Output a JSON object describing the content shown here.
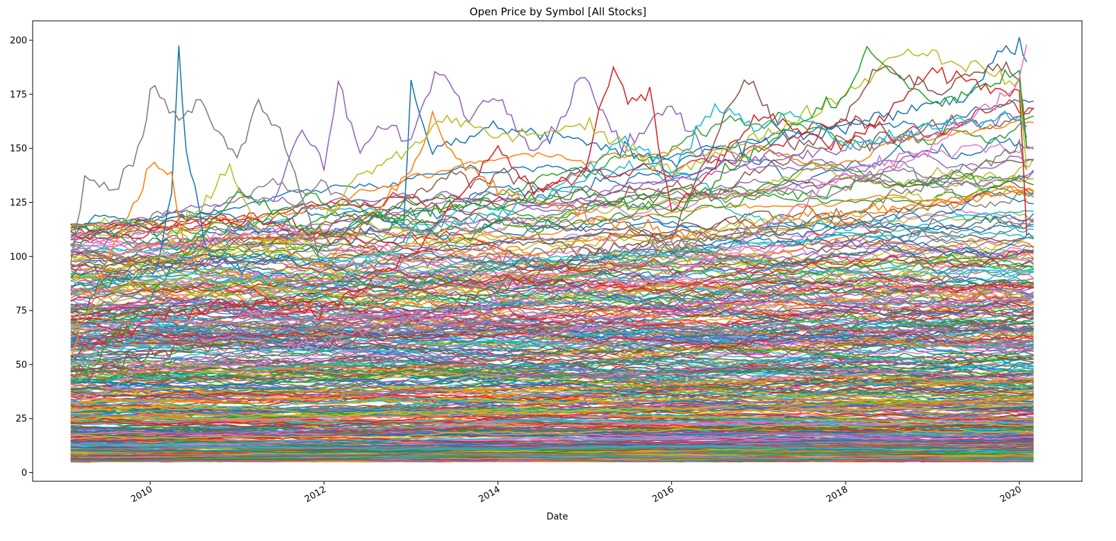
{
  "chart_data": {
    "type": "line",
    "title": "Open Price by Symbol [All Stocks]",
    "xlabel": "Date",
    "ylabel": "",
    "x_range": [
      "2009-02-01",
      "2020-03-01"
    ],
    "xlim": [
      "2008-08-25",
      "2020-09-20"
    ],
    "ylim": [
      -4,
      209
    ],
    "x_ticks": [
      "2010",
      "2012",
      "2014",
      "2016",
      "2018",
      "2020"
    ],
    "x_tick_dates": [
      "2010-01-01",
      "2012-01-01",
      "2014-01-01",
      "2016-01-01",
      "2018-01-01",
      "2020-01-01"
    ],
    "y_ticks": [
      0,
      25,
      50,
      75,
      100,
      125,
      150,
      175,
      200
    ],
    "legend": false,
    "grid": false,
    "series_count_approx": 500,
    "palette": [
      "#1f77b4",
      "#ff7f0e",
      "#2ca02c",
      "#d62728",
      "#9467bd",
      "#8c564b",
      "#e377c2",
      "#7f7f7f",
      "#bcbd22",
      "#17becf"
    ],
    "series": [
      {
        "color": "#1f77b4",
        "x": [
          "2009-02",
          "2009-06",
          "2009-10",
          "2010-02",
          "2010-04",
          "2010-05",
          "2010-06",
          "2010-09",
          "2011-01",
          "2012-12",
          "2013-01",
          "2013-04",
          "2014-01",
          "2016-01",
          "2018-01",
          "2019-06",
          "2019-10",
          "2020-01",
          "2020-02"
        ],
        "values": [
          60,
          85,
          90,
          95,
          130,
          195,
          150,
          100,
          95,
          115,
          180,
          150,
          160,
          145,
          160,
          175,
          195,
          197,
          190
        ]
      },
      {
        "color": "#7f7f7f",
        "x": [
          "2009-02",
          "2009-04",
          "2009-08",
          "2009-12",
          "2010-01",
          "2010-05",
          "2010-08",
          "2011-01",
          "2011-04",
          "2011-07",
          "2011-09",
          "2012-01",
          "2014-01",
          "2016-01",
          "2018-01",
          "2020-01",
          "2020-02"
        ],
        "values": [
          96,
          138,
          128,
          155,
          178,
          165,
          170,
          145,
          172,
          158,
          140,
          95,
          100,
          105,
          120,
          150,
          140
        ]
      },
      {
        "color": "#ff7f0e",
        "x": [
          "2009-02",
          "2009-08",
          "2009-12",
          "2010-01",
          "2010-04",
          "2010-06",
          "2010-12",
          "2011-06",
          "2012-01",
          "2013-01",
          "2013-04",
          "2013-06",
          "2014-01",
          "2016-01",
          "2018-01",
          "2020-01",
          "2020-02"
        ],
        "values": [
          55,
          105,
          132,
          146,
          138,
          100,
          110,
          108,
          95,
          140,
          165,
          150,
          130,
          110,
          120,
          130,
          125
        ]
      },
      {
        "color": "#9467bd",
        "x": [
          "2011-06",
          "2011-10",
          "2012-01",
          "2012-03",
          "2012-06",
          "2012-09",
          "2013-01",
          "2013-05",
          "2013-09",
          "2014-01",
          "2014-06",
          "2014-09",
          "2015-01",
          "2015-06",
          "2016-01",
          "2016-06",
          "2018-01",
          "2020-01",
          "2020-02"
        ],
        "values": [
          125,
          160,
          140,
          180,
          148,
          160,
          155,
          188,
          165,
          175,
          150,
          160,
          185,
          150,
          170,
          145,
          150,
          165,
          160
        ]
      },
      {
        "color": "#d62728",
        "x": [
          "2009-02",
          "2010-01",
          "2011-01",
          "2012-01",
          "2013-01",
          "2014-01",
          "2014-06",
          "2015-01",
          "2015-05",
          "2015-07",
          "2015-10",
          "2016-01",
          "2017-01",
          "2018-01",
          "2019-01",
          "2020-01",
          "2020-02"
        ],
        "values": [
          55,
          70,
          80,
          75,
          100,
          150,
          130,
          140,
          188,
          170,
          175,
          120,
          165,
          150,
          185,
          175,
          110
        ]
      },
      {
        "color": "#bcbd22",
        "x": [
          "2009-02",
          "2010-01",
          "2010-12",
          "2011-06",
          "2012-01",
          "2012-05",
          "2013-01",
          "2013-06",
          "2014-01",
          "2015-01",
          "2016-01",
          "2017-01",
          "2018-01",
          "2018-09",
          "2019-05",
          "2020-01",
          "2020-02"
        ],
        "values": [
          70,
          95,
          140,
          100,
          115,
          135,
          150,
          165,
          155,
          160,
          140,
          155,
          175,
          196,
          190,
          180,
          140
        ]
      },
      {
        "color": "#17becf",
        "x": [
          "2009-02",
          "2010-01",
          "2011-01",
          "2012-01",
          "2013-01",
          "2014-01",
          "2015-01",
          "2015-06",
          "2016-01",
          "2016-07",
          "2017-01",
          "2017-06",
          "2018-01",
          "2019-01",
          "2020-01",
          "2020-02"
        ],
        "values": [
          50,
          65,
          90,
          85,
          110,
          120,
          135,
          155,
          140,
          170,
          160,
          168,
          150,
          160,
          165,
          155
        ]
      },
      {
        "color": "#8c564b",
        "x": [
          "2009-02",
          "2010-01",
          "2011-01",
          "2012-01",
          "2013-01",
          "2014-01",
          "2015-01",
          "2016-01",
          "2016-11",
          "2017-06",
          "2018-01",
          "2018-06",
          "2019-01",
          "2019-10",
          "2020-01",
          "2020-02"
        ],
        "values": [
          45,
          55,
          60,
          58,
          70,
          85,
          100,
          110,
          184,
          150,
          165,
          190,
          175,
          190,
          185,
          150
        ]
      },
      {
        "color": "#2ca02c",
        "x": [
          "2009-02",
          "2010-01",
          "2011-01",
          "2011-06",
          "2012-01",
          "2013-01",
          "2014-01",
          "2015-01",
          "2016-01",
          "2017-01",
          "2018-01",
          "2018-04",
          "2019-01",
          "2020-01",
          "2020-02"
        ],
        "values": [
          40,
          80,
          130,
          120,
          110,
          120,
          125,
          130,
          120,
          150,
          175,
          195,
          170,
          185,
          150
        ]
      },
      {
        "color": "#e377c2",
        "x": [
          "2009-02",
          "2010-01",
          "2011-01",
          "2012-01",
          "2013-01",
          "2014-01",
          "2015-01",
          "2016-01",
          "2017-01",
          "2018-01",
          "2019-01",
          "2020-01",
          "2020-02"
        ],
        "values": [
          30,
          50,
          55,
          60,
          70,
          80,
          85,
          90,
          110,
          140,
          150,
          180,
          198
        ]
      }
    ]
  }
}
